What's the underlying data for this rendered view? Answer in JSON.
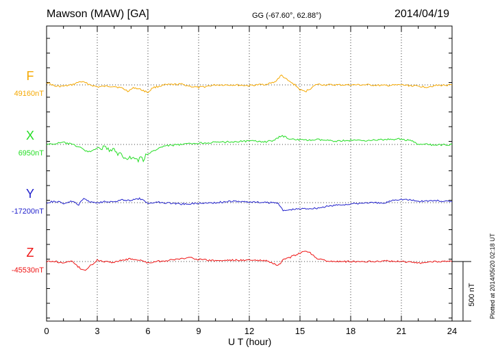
{
  "header": {
    "station": "Mawson (MAW)  [GA]",
    "coords": "GG (-67.60°,  62.88°)",
    "date": "2014/04/19"
  },
  "footer": {
    "plotted": "Plotted at 2014/05/20 02:18 UT"
  },
  "chart_data": {
    "type": "line",
    "xlabel": "U T (hour)",
    "xlim": [
      0,
      24
    ],
    "xticks": [
      0,
      3,
      6,
      9,
      12,
      15,
      18,
      21,
      24
    ],
    "grid": true,
    "scale_bar": {
      "label": "500 nT",
      "value_nT": 500
    },
    "series": [
      {
        "name": "F",
        "baseline_label": "49160nT",
        "baseline_nT": 49160,
        "color": "#f5a800",
        "x": [
          0,
          0.5,
          1,
          1.5,
          2,
          2.3,
          2.6,
          3,
          3.5,
          4,
          4.5,
          4.8,
          5.2,
          5.6,
          6,
          6.3,
          7,
          8,
          8.5,
          9,
          10,
          11,
          12,
          13,
          13.5,
          13.9,
          14.3,
          14.7,
          15,
          15.3,
          15.7,
          16,
          16.5,
          17,
          18,
          19,
          20,
          21,
          22,
          22.5,
          23,
          24
        ],
        "values": [
          49180,
          49150,
          49150,
          49160,
          49185,
          49175,
          49160,
          49145,
          49150,
          49150,
          49135,
          49115,
          49140,
          49125,
          49105,
          49140,
          49160,
          49165,
          49150,
          49140,
          49160,
          49160,
          49155,
          49165,
          49180,
          49230,
          49190,
          49160,
          49125,
          49110,
          49140,
          49165,
          49160,
          49160,
          49160,
          49160,
          49155,
          49160,
          49150,
          49145,
          49155,
          49160
        ]
      },
      {
        "name": "X",
        "baseline_label": "6950nT",
        "baseline_nT": 6950,
        "color": "#22dd22",
        "x": [
          0,
          0.5,
          1,
          1.5,
          2,
          2.3,
          2.6,
          3,
          3.5,
          4,
          4.5,
          5,
          5.5,
          5.8,
          6,
          6.5,
          7,
          8,
          9,
          10,
          11,
          12,
          13,
          13.5,
          13.9,
          14.3,
          14.8,
          15.5,
          16,
          17,
          18,
          19,
          20,
          21,
          21.6,
          22,
          22.5,
          23,
          24
        ],
        "values": [
          6950,
          6955,
          6965,
          6950,
          6930,
          6900,
          6900,
          6925,
          6920,
          6900,
          6870,
          6850,
          6840,
          6850,
          6880,
          6915,
          6940,
          6950,
          6960,
          6965,
          6970,
          6975,
          6970,
          6980,
          7015,
          6995,
          6985,
          6980,
          6985,
          6975,
          6980,
          6980,
          6985,
          6990,
          6975,
          6950,
          6950,
          6945,
          6950
        ]
      },
      {
        "name": "Y",
        "baseline_label": "-17200nT",
        "baseline_nT": -17200,
        "color": "#2020cc",
        "x": [
          0,
          0.5,
          1,
          1.5,
          1.9,
          2.2,
          2.6,
          3,
          3.5,
          4,
          4.5,
          5,
          5.5,
          6,
          6.5,
          7,
          8,
          9,
          10,
          11,
          12,
          13,
          13.7,
          14,
          14.5,
          15,
          16,
          17,
          18,
          19,
          20,
          20.5,
          21,
          21.5,
          22,
          23,
          24
        ],
        "values": [
          -17200,
          -17190,
          -17205,
          -17190,
          -17215,
          -17170,
          -17195,
          -17200,
          -17190,
          -17195,
          -17180,
          -17185,
          -17170,
          -17205,
          -17195,
          -17200,
          -17210,
          -17205,
          -17200,
          -17190,
          -17195,
          -17200,
          -17200,
          -17260,
          -17250,
          -17245,
          -17240,
          -17220,
          -17210,
          -17200,
          -17205,
          -17180,
          -17175,
          -17180,
          -17190,
          -17185,
          -17195
        ]
      },
      {
        "name": "Z",
        "baseline_label": "-45530nT",
        "baseline_nT": -45530,
        "color": "#ee1111",
        "x": [
          0,
          0.5,
          1,
          1.5,
          2,
          2.3,
          2.6,
          3,
          3.5,
          4,
          4.5,
          5,
          5.5,
          6,
          6.5,
          7,
          8,
          8.5,
          9,
          10,
          11,
          12,
          13,
          13.7,
          14,
          14.5,
          15,
          15.3,
          15.6,
          16,
          16.5,
          17,
          18,
          19,
          20,
          21,
          22,
          23,
          24
        ],
        "values": [
          -45530,
          -45530,
          -45540,
          -45530,
          -45580,
          -45595,
          -45560,
          -45520,
          -45530,
          -45535,
          -45520,
          -45510,
          -45520,
          -45540,
          -45530,
          -45525,
          -45510,
          -45500,
          -45515,
          -45525,
          -45520,
          -45520,
          -45525,
          -45560,
          -45520,
          -45495,
          -45470,
          -45455,
          -45465,
          -45505,
          -45525,
          -45530,
          -45530,
          -45530,
          -45525,
          -45530,
          -45540,
          -45530,
          -45530
        ]
      }
    ]
  }
}
